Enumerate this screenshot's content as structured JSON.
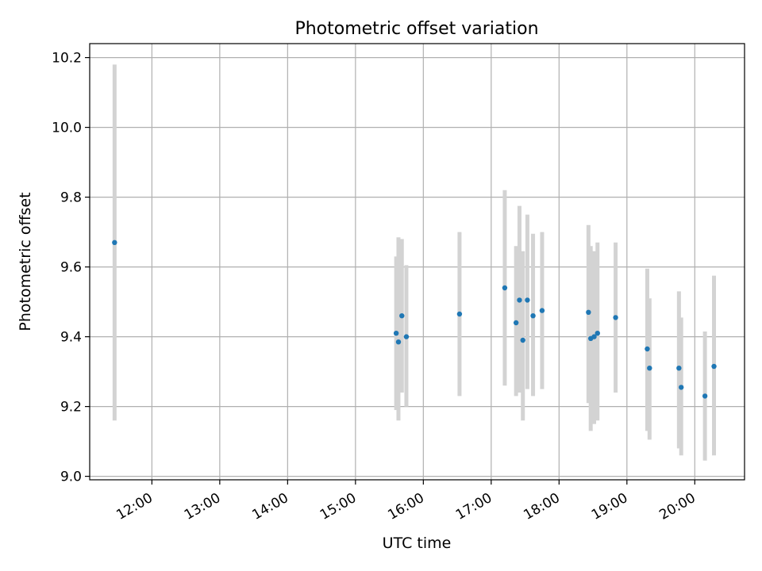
{
  "chart_data": {
    "type": "scatter",
    "title": "Photometric offset variation",
    "xlabel": "UTC time",
    "ylabel": "Photometric offset",
    "x_ticks": [
      "12:00",
      "13:00",
      "14:00",
      "15:00",
      "16:00",
      "17:00",
      "18:00",
      "19:00",
      "20:00"
    ],
    "y_ticks": [
      "9.0",
      "9.2",
      "9.4",
      "9.6",
      "9.8",
      "10.0",
      "10.2"
    ],
    "xlim": [
      "11:05",
      "20:44"
    ],
    "ylim": [
      8.99,
      10.24
    ],
    "grid": true,
    "legend": "none",
    "colors": {
      "point": "#1f77b4",
      "errorbar": "#d3d3d3",
      "grid": "#b0b0b0"
    },
    "series": [
      {
        "x": [
          "11:27",
          "15:36",
          "15:38",
          "15:41",
          "15:45",
          "16:32",
          "17:12",
          "17:22",
          "17:25",
          "17:28",
          "17:32",
          "17:37",
          "17:45",
          "18:26",
          "18:28",
          "18:31",
          "18:34",
          "18:50",
          "19:18",
          "19:20",
          "19:46",
          "19:48",
          "20:09",
          "20:17"
        ],
        "y": [
          9.67,
          9.41,
          9.385,
          9.46,
          9.4,
          9.465,
          9.54,
          9.44,
          9.505,
          9.39,
          9.505,
          9.46,
          9.475,
          9.47,
          9.395,
          9.4,
          9.41,
          9.455,
          9.365,
          9.31,
          9.31,
          9.255,
          9.23,
          9.315
        ],
        "err_low": [
          9.16,
          9.19,
          9.16,
          9.24,
          9.2,
          9.23,
          9.26,
          9.23,
          9.24,
          9.16,
          9.25,
          9.23,
          9.25,
          9.21,
          9.13,
          9.15,
          9.16,
          9.24,
          9.13,
          9.105,
          9.08,
          9.06,
          9.045,
          9.06
        ],
        "err_high": [
          10.18,
          9.63,
          9.685,
          9.68,
          9.605,
          9.7,
          9.82,
          9.66,
          9.775,
          9.645,
          9.75,
          9.695,
          9.7,
          9.72,
          9.66,
          9.645,
          9.67,
          9.67,
          9.595,
          9.51,
          9.53,
          9.455,
          9.415,
          9.575
        ]
      }
    ]
  }
}
